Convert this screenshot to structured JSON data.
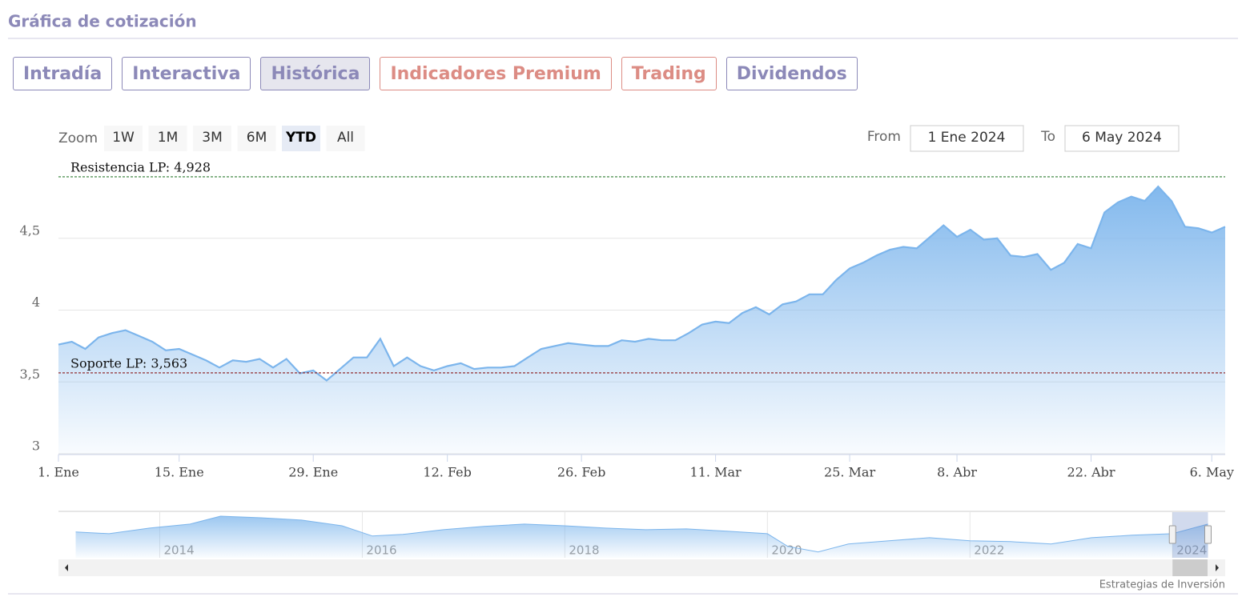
{
  "header": {
    "title": "Gráfica de cotización"
  },
  "tabs": [
    {
      "label": "Intradía",
      "active": false,
      "color": "#8c89b8"
    },
    {
      "label": "Interactiva",
      "active": false,
      "color": "#8c89b8"
    },
    {
      "label": "Histórica",
      "active": true,
      "color": "#8c89b8"
    },
    {
      "label": "Indicadores Premium",
      "active": false,
      "color": "#dc8c84"
    },
    {
      "label": "Trading",
      "active": false,
      "color": "#dc8c84"
    },
    {
      "label": "Dividendos",
      "active": false,
      "color": "#8c89b8"
    }
  ],
  "zoom": {
    "label": "Zoom",
    "buttons": [
      "1W",
      "1M",
      "3M",
      "6M",
      "YTD",
      "All"
    ],
    "active": "YTD"
  },
  "range": {
    "from_label": "From",
    "from": "1 Ene 2024",
    "to_label": "To",
    "to": "6 May 2024"
  },
  "chart_data": {
    "type": "area",
    "color": "#7cb5ec",
    "grid": true,
    "values": [
      3.76,
      3.78,
      3.73,
      3.81,
      3.84,
      3.86,
      3.82,
      3.78,
      3.72,
      3.73,
      3.69,
      3.65,
      3.6,
      3.65,
      3.64,
      3.66,
      3.6,
      3.66,
      3.56,
      3.58,
      3.51,
      3.59,
      3.67,
      3.67,
      3.8,
      3.61,
      3.67,
      3.61,
      3.58,
      3.61,
      3.63,
      3.59,
      3.6,
      3.6,
      3.61,
      3.67,
      3.73,
      3.75,
      3.77,
      3.76,
      3.75,
      3.75,
      3.79,
      3.78,
      3.8,
      3.79,
      3.79,
      3.84,
      3.9,
      3.92,
      3.91,
      3.98,
      4.02,
      3.97,
      4.04,
      4.06,
      4.11,
      4.11,
      4.21,
      4.29,
      4.33,
      4.38,
      4.42,
      4.44,
      4.43,
      4.51,
      4.59,
      4.51,
      4.56,
      4.49,
      4.5,
      4.38,
      4.37,
      4.39,
      4.28,
      4.33,
      4.46,
      4.43,
      4.68,
      4.75,
      4.79,
      4.76,
      4.86,
      4.76,
      4.58,
      4.57,
      4.54,
      4.58
    ],
    "xlim": [
      0,
      87
    ],
    "xticks": [
      {
        "value": 0,
        "label": "1. Ene"
      },
      {
        "value": 9,
        "label": "15. Ene"
      },
      {
        "value": 19,
        "label": "29. Ene"
      },
      {
        "value": 29,
        "label": "12. Feb"
      },
      {
        "value": 39,
        "label": "26. Feb"
      },
      {
        "value": 49,
        "label": "11. Mar"
      },
      {
        "value": 59,
        "label": "25. Mar"
      },
      {
        "value": 67,
        "label": "8. Abr"
      },
      {
        "value": 77,
        "label": "22. Abr"
      },
      {
        "value": 86,
        "label": "6. May"
      }
    ],
    "ylim": [
      3,
      5
    ],
    "yticks": [
      3,
      {
        "value": 3.5,
        "label": "3,5"
      },
      4,
      {
        "value": 4.5,
        "label": "4,5"
      }
    ],
    "plot_lines": [
      {
        "value": 4.928,
        "label": "Resistencia LP: 4,928",
        "color": "#2e7d32"
      },
      {
        "value": 3.563,
        "label": "Soporte LP: 3,563",
        "color": "#8b1a1a"
      }
    ]
  },
  "navigator": {
    "type": "area",
    "color": "#7cb5ec",
    "x": [
      2013.17,
      2013.5,
      2013.9,
      2014.3,
      2014.6,
      2015.0,
      2015.4,
      2015.8,
      2016.1,
      2016.4,
      2016.8,
      2017.2,
      2017.6,
      2018.0,
      2018.4,
      2018.8,
      2019.2,
      2019.6,
      2020.0,
      2020.2,
      2020.5,
      2020.8,
      2021.2,
      2021.6,
      2022.0,
      2022.4,
      2022.8,
      2023.2,
      2023.6,
      2024.0,
      2024.35
    ],
    "values": [
      3.9,
      3.76,
      4.24,
      4.58,
      5.26,
      5.12,
      4.92,
      4.44,
      3.56,
      3.7,
      4.1,
      4.38,
      4.58,
      4.44,
      4.24,
      4.1,
      4.17,
      3.97,
      3.76,
      2.68,
      2.2,
      2.88,
      3.15,
      3.42,
      3.15,
      3.08,
      2.88,
      3.42,
      3.63,
      3.76,
      4.58
    ],
    "xlim": [
      2013,
      2024.52
    ],
    "ylim": [
      1.7,
      5.6
    ],
    "xticks": [
      2014,
      2016,
      2018,
      2020,
      2022,
      2024
    ],
    "selection": [
      2024.0,
      2024.35
    ]
  },
  "credit": "Estrategias de Inversión"
}
